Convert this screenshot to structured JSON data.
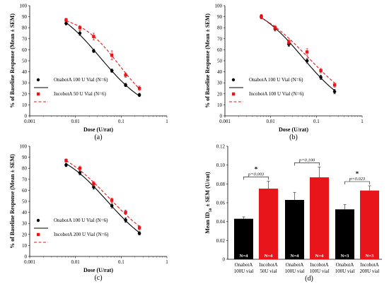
{
  "chart_data": [
    {
      "type": "scatter",
      "panel_label": "(a)",
      "xlabel": "Dose (U/rat)",
      "ylabel": "% of Baseline Response (Mean ± SEM)",
      "x_scale": "log",
      "xlim": [
        0.001,
        1
      ],
      "ylim": [
        0,
        100
      ],
      "xticks": [
        "0.001",
        "0.01",
        "0.1",
        "1"
      ],
      "yticks": [
        "0",
        "10",
        "20",
        "30",
        "40",
        "50",
        "60",
        "70",
        "80",
        "90",
        "100"
      ],
      "series": [
        {
          "name": "OnabotA 100 U Vial (N=6)",
          "color": "#000000",
          "marker": "circle",
          "line": "solid",
          "x": [
            0.00625,
            0.0125,
            0.025,
            0.0625,
            0.125,
            0.25
          ],
          "y": [
            84,
            75,
            59,
            41,
            28,
            19
          ],
          "err": [
            1.5,
            2,
            1.5,
            1.5,
            1.5,
            1.5
          ]
        },
        {
          "name": "IncobotA 50 U Vial (N=6)",
          "color": "#e8161b",
          "marker": "square",
          "line": "dashed",
          "x": [
            0.00625,
            0.0125,
            0.025,
            0.0625,
            0.125,
            0.25
          ],
          "y": [
            87,
            80,
            72,
            55,
            37,
            25
          ],
          "err": [
            1.5,
            2,
            3,
            4,
            2,
            2
          ]
        }
      ]
    },
    {
      "type": "scatter",
      "panel_label": "(b)",
      "xlabel": "Dose (U/rat)",
      "ylabel": "% of Baseline Response (Mean ± SEM)",
      "x_scale": "log",
      "xlim": [
        0.001,
        1
      ],
      "ylim": [
        0,
        100
      ],
      "xticks": [
        "0.001",
        "0.01",
        "0.1",
        "1"
      ],
      "yticks": [
        "0",
        "10",
        "20",
        "30",
        "40",
        "50",
        "60",
        "70",
        "80",
        "90",
        "100"
      ],
      "series": [
        {
          "name": "OnabotA 100 U Vial (N=6)",
          "color": "#000000",
          "marker": "circle",
          "line": "solid",
          "x": [
            0.00625,
            0.0125,
            0.025,
            0.0625,
            0.125,
            0.25
          ],
          "y": [
            90,
            79,
            65,
            50,
            35,
            22
          ],
          "err": [
            1.5,
            2,
            2,
            2,
            2,
            2
          ]
        },
        {
          "name": "IncobotA 100 U Vial (N=6)",
          "color": "#e8161b",
          "marker": "square",
          "line": "dashed",
          "x": [
            0.00625,
            0.0125,
            0.025,
            0.0625,
            0.125,
            0.25
          ],
          "y": [
            90,
            80,
            67,
            58,
            41,
            28
          ],
          "err": [
            2,
            2,
            2,
            3,
            2,
            2
          ]
        }
      ]
    },
    {
      "type": "scatter",
      "panel_label": "(c)",
      "xlabel": "Dose (U/rat)",
      "ylabel": "% of Baseline Response (Mean ± SEM)",
      "x_scale": "log",
      "xlim": [
        0.001,
        1
      ],
      "ylim": [
        0,
        100
      ],
      "xticks": [
        "0.001",
        "0.01",
        "0.1",
        "1"
      ],
      "yticks": [
        "0",
        "10",
        "20",
        "30",
        "40",
        "50",
        "60",
        "70",
        "80",
        "90",
        "100"
      ],
      "series": [
        {
          "name": "OnabotA 100 U Vial (N=6)",
          "color": "#000000",
          "marker": "circle",
          "line": "solid",
          "x": [
            0.00625,
            0.0125,
            0.025,
            0.0625,
            0.125,
            0.25
          ],
          "y": [
            83,
            76,
            63,
            46,
            33,
            21
          ],
          "err": [
            1.5,
            2,
            2,
            2,
            2,
            1.5
          ]
        },
        {
          "name": "IncobotA 200 U Vial (N=6)",
          "color": "#e8161b",
          "marker": "square",
          "line": "dashed",
          "x": [
            0.00625,
            0.0125,
            0.025,
            0.0625,
            0.125,
            0.25
          ],
          "y": [
            87,
            80,
            66,
            51,
            40,
            26
          ],
          "err": [
            1.5,
            2,
            2,
            2,
            2,
            2
          ]
        }
      ]
    },
    {
      "type": "bar",
      "panel_label": "(d)",
      "ylabel_main": "Mean ID",
      "ylabel_sub": "50",
      "ylabel_tail": " ± SEM (U/rat)",
      "ylim": [
        0,
        0.12
      ],
      "yticks": [
        "0",
        "0.02",
        "0.04",
        "0.06",
        "0.08",
        "0.10",
        "0.12"
      ],
      "groups": [
        {
          "p_text": "p=0.003",
          "significance": "*",
          "bars": [
            {
              "label_line1": "OnabotA",
              "label_line2": "100U vial",
              "value": 0.043,
              "err": 0.002,
              "color": "#000000",
              "n_text": "N=4"
            },
            {
              "label_line1": "IncobotA",
              "label_line2": "50U vial",
              "value": 0.075,
              "err": 0.008,
              "color": "#e8161b",
              "n_text": "N=4"
            }
          ]
        },
        {
          "p_text": "p=0.100",
          "significance": "",
          "bars": [
            {
              "label_line1": "OnabotA",
              "label_line2": "100U vial",
              "value": 0.063,
              "err": 0.008,
              "color": "#000000",
              "n_text": "N=4"
            },
            {
              "label_line1": "IncobotA",
              "label_line2": "100U vial",
              "value": 0.087,
              "err": 0.011,
              "color": "#e8161b",
              "n_text": "N=4"
            }
          ]
        },
        {
          "p_text": "p=0.023",
          "significance": "*",
          "bars": [
            {
              "label_line1": "OnabotA",
              "label_line2": "100U vial",
              "value": 0.053,
              "err": 0.005,
              "color": "#000000",
              "n_text": "N=3"
            },
            {
              "label_line1": "IncobotA",
              "label_line2": "200U vial",
              "value": 0.073,
              "err": 0.005,
              "color": "#e8161b",
              "n_text": "N=3"
            }
          ]
        }
      ]
    }
  ]
}
